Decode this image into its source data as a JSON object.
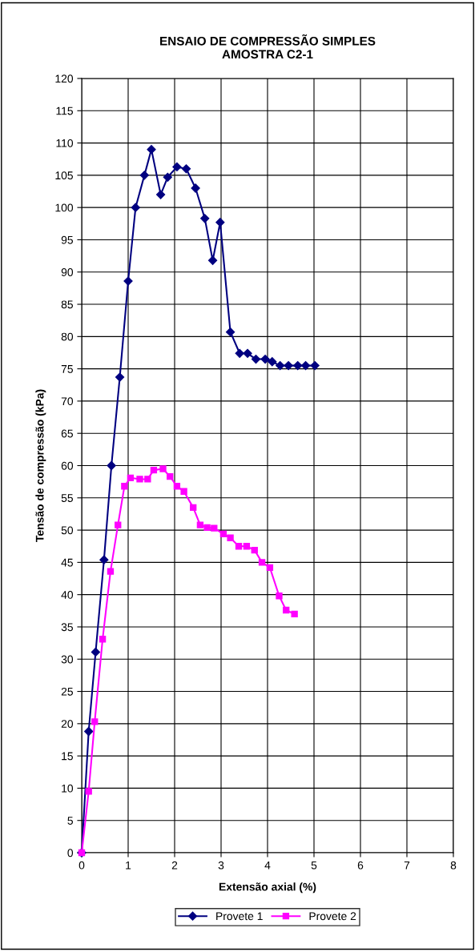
{
  "chart_data": {
    "type": "line",
    "title": "ENSAIO DE COMPRESSÃO SIMPLES\nAMOSTRA C2-1",
    "xlabel": "Extensão axial (%)",
    "ylabel": "Tensão de compressão (kPa)",
    "xlim": [
      0,
      8
    ],
    "xticks": [
      0,
      1,
      2,
      3,
      4,
      5,
      6,
      7,
      8
    ],
    "ylim": [
      0,
      120
    ],
    "yticks": [
      0,
      5,
      10,
      15,
      20,
      25,
      30,
      35,
      40,
      45,
      50,
      55,
      60,
      65,
      70,
      75,
      80,
      85,
      90,
      95,
      100,
      105,
      110,
      115,
      120
    ],
    "grid": true,
    "legend": "bottom",
    "line_style": "solid",
    "series": [
      {
        "name": "Provete 1",
        "color": "#000080",
        "marker": "diamond",
        "x": [
          0,
          0.15,
          0.3,
          0.48,
          0.64,
          0.82,
          1.0,
          1.16,
          1.35,
          1.5,
          1.7,
          1.85,
          2.05,
          2.25,
          2.45,
          2.65,
          2.82,
          2.98,
          3.2,
          3.4,
          3.57,
          3.75,
          3.95,
          4.1,
          4.27,
          4.45,
          4.65,
          4.82,
          5.02
        ],
        "values": [
          0,
          18.8,
          31.1,
          45.4,
          60,
          73.7,
          88.6,
          100,
          105,
          109,
          102,
          104.7,
          106.3,
          106,
          103,
          98.3,
          91.8,
          97.7,
          80.7,
          77.4,
          77.4,
          76.5,
          76.5,
          76.1,
          75.5,
          75.5,
          75.5,
          75.5,
          75.5
        ]
      },
      {
        "name": "Provete 2",
        "color": "#ff00ff",
        "marker": "square",
        "x": [
          0,
          0.15,
          0.28,
          0.45,
          0.62,
          0.78,
          0.92,
          1.05,
          1.25,
          1.42,
          1.55,
          1.75,
          1.9,
          2.05,
          2.2,
          2.4,
          2.55,
          2.7,
          2.85,
          3.05,
          3.2,
          3.38,
          3.55,
          3.72,
          3.88,
          4.05,
          4.25,
          4.4,
          4.58
        ],
        "values": [
          0,
          9.5,
          20.3,
          33.1,
          43.6,
          50.8,
          56.8,
          58.1,
          57.9,
          57.9,
          59.3,
          59.5,
          58.3,
          56.8,
          56,
          53.5,
          50.8,
          50.4,
          50.3,
          49.4,
          48.8,
          47.5,
          47.5,
          46.9,
          45,
          44.2,
          39.8,
          37.6,
          37
        ]
      }
    ]
  }
}
